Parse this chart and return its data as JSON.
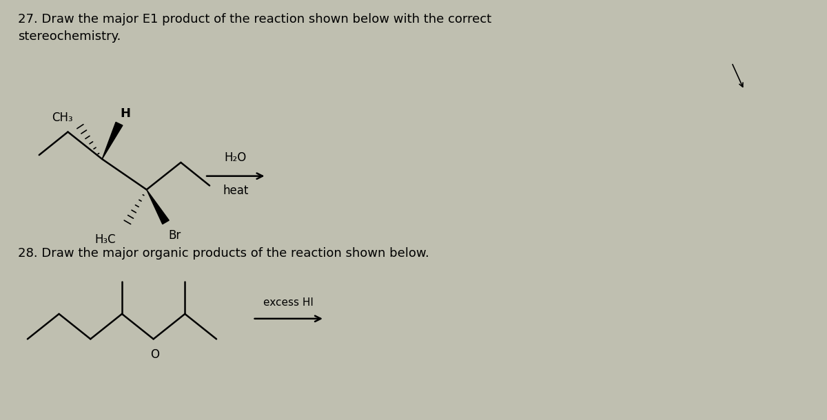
{
  "bg_color": "#bfbfb0",
  "text_color": "#000000",
  "title27": "27. Draw the major E1 product of the reaction shown below with the correct\nstereochemistry.",
  "title28": "28. Draw the major organic products of the reaction shown below.",
  "reagent27_line1": "H₂O",
  "reagent27_line2": "heat",
  "reagent28": "excess HI",
  "fig_width": 12.0,
  "fig_height": 6.1,
  "dpi": 100
}
